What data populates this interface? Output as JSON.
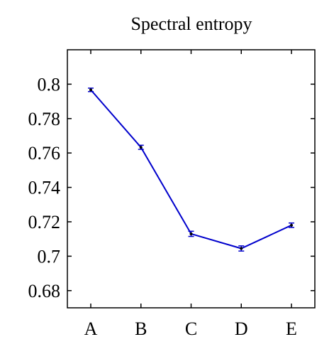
{
  "chart_data": {
    "type": "line",
    "title": "Spectral entropy",
    "categories": [
      "A",
      "B",
      "C",
      "D",
      "E"
    ],
    "values": [
      0.7967,
      0.7633,
      0.713,
      0.7045,
      0.718
    ],
    "errors": [
      0.001,
      0.0012,
      0.0015,
      0.0015,
      0.0013
    ],
    "color": "#0000cc",
    "ylim": [
      0.67,
      0.82
    ],
    "yticks": [
      0.68,
      0.7,
      0.72,
      0.74,
      0.76,
      0.78,
      0.8
    ]
  }
}
